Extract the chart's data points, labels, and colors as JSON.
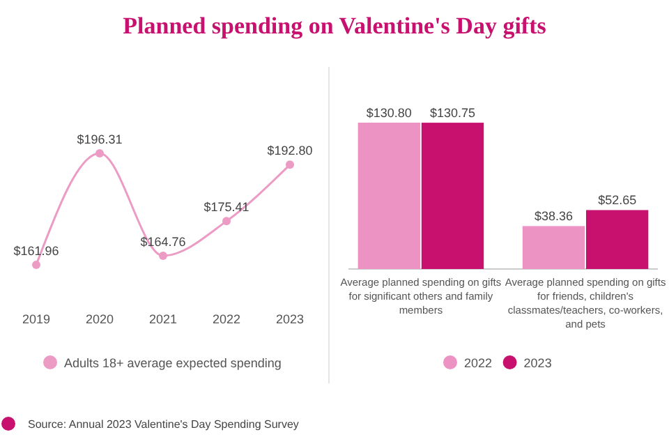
{
  "chart_data": [
    {
      "type": "line",
      "title": "Planned spending on Valentine's Day gifts",
      "categories": [
        "2019",
        "2020",
        "2021",
        "2022",
        "2023"
      ],
      "series": [
        {
          "name": "Adults 18+ average expected spending",
          "color": "#ec9bc5",
          "values": [
            161.96,
            196.31,
            164.76,
            175.41,
            192.8
          ],
          "value_labels": [
            "$161.96",
            "$196.31",
            "$164.76",
            "$175.41",
            "$192.80"
          ]
        }
      ],
      "marker": "circle",
      "legend": "bottom"
    },
    {
      "type": "bar",
      "categories": [
        "Average planned spending on gifts for significant others and family members",
        "Average planned spending on gifts for friends, children's classmates/teachers, co-workers, and pets"
      ],
      "series": [
        {
          "name": "2022",
          "color": "#ec93c4",
          "values": [
            130.8,
            38.36
          ],
          "value_labels": [
            "$130.80",
            "$38.36"
          ]
        },
        {
          "name": "2023",
          "color": "#c8106e",
          "values": [
            130.75,
            52.65
          ],
          "value_labels": [
            "$130.75",
            "$52.65"
          ]
        }
      ],
      "legend": "bottom",
      "annotations": [
        "Source: Annual 2023 Valentine's Day Spending Survey"
      ]
    }
  ]
}
